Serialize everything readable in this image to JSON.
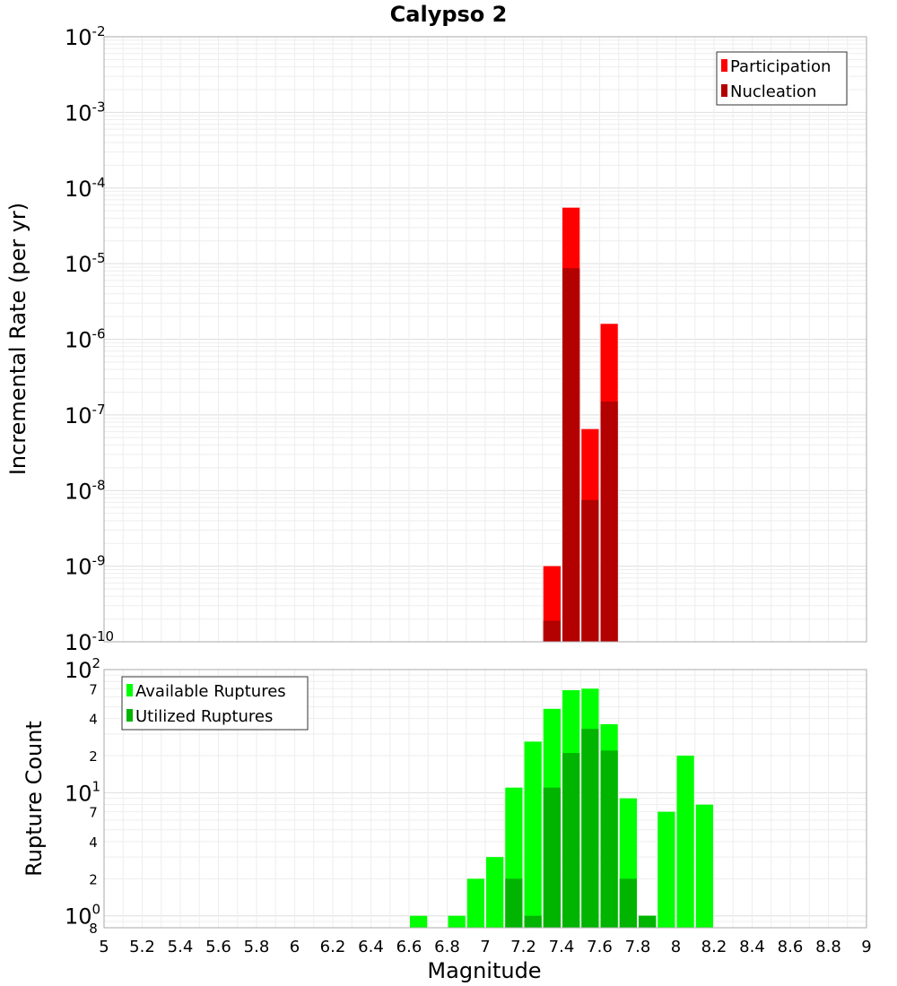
{
  "title": "Calypso 2",
  "chart_data": [
    {
      "type": "bar",
      "yscale": "log",
      "ylabel": "Incremental Rate (per yr)",
      "ylim": [
        1e-10,
        0.01
      ],
      "y_tick_labels": [
        {
          "base": "10",
          "exp": "-2"
        },
        {
          "base": "10",
          "exp": "-3"
        },
        {
          "base": "10",
          "exp": "-4"
        },
        {
          "base": "10",
          "exp": "-5"
        },
        {
          "base": "10",
          "exp": "-6"
        },
        {
          "base": "10",
          "exp": "-7"
        },
        {
          "base": "10",
          "exp": "-8"
        },
        {
          "base": "10",
          "exp": "-9"
        },
        {
          "base": "10",
          "exp": "-10"
        }
      ],
      "legend_position": "top-right",
      "grid": true,
      "x": [
        7.35,
        7.45,
        7.55,
        7.65
      ],
      "series": [
        {
          "name": "Participation",
          "color": "#ff0000",
          "values": [
            1e-09,
            5.5e-05,
            6.5e-08,
            1.6e-06
          ]
        },
        {
          "name": "Nucleation",
          "color": "#b30000",
          "values": [
            1.9e-10,
            8.7e-06,
            7.5e-09,
            1.5e-07
          ]
        }
      ]
    },
    {
      "type": "bar",
      "yscale": "log",
      "ylabel": "Rupture Count",
      "ylim": [
        0.8,
        100
      ],
      "y_tick_labels": [
        {
          "value": 100,
          "base": "10",
          "exp": "2"
        },
        {
          "value": 70,
          "minor": "7"
        },
        {
          "value": 40,
          "minor": "4"
        },
        {
          "value": 20,
          "minor": "2"
        },
        {
          "value": 10,
          "base": "10",
          "exp": "1"
        },
        {
          "value": 7,
          "minor": "7"
        },
        {
          "value": 4,
          "minor": "4"
        },
        {
          "value": 2,
          "minor": "2"
        },
        {
          "value": 1,
          "base": "10",
          "exp": "0"
        },
        {
          "value": 0.8,
          "minor": "8"
        }
      ],
      "legend_position": "top-left",
      "grid": true,
      "x": [
        6.65,
        6.85,
        6.95,
        7.05,
        7.15,
        7.25,
        7.35,
        7.45,
        7.55,
        7.65,
        7.75,
        7.85,
        7.95,
        8.05,
        8.15
      ],
      "series": [
        {
          "name": "Available Ruptures",
          "color": "#00ff00",
          "values": [
            1,
            1,
            2,
            3,
            11,
            26,
            48,
            68,
            70,
            36,
            9,
            1,
            7,
            20,
            8
          ]
        },
        {
          "name": "Utilized Ruptures",
          "color": "#00b400",
          "values": [
            null,
            null,
            null,
            null,
            2,
            1,
            11,
            21,
            33,
            22,
            2,
            1,
            null,
            null,
            null
          ]
        }
      ]
    }
  ],
  "xaxis": {
    "label": "Magnitude",
    "xlim": [
      5,
      9
    ],
    "ticks": [
      "5",
      "5.2",
      "5.4",
      "5.6",
      "5.8",
      "6",
      "6.2",
      "6.4",
      "6.6",
      "6.8",
      "7",
      "7.2",
      "7.4",
      "7.6",
      "7.8",
      "8",
      "8.2",
      "8.4",
      "8.6",
      "8.8",
      "9"
    ]
  }
}
